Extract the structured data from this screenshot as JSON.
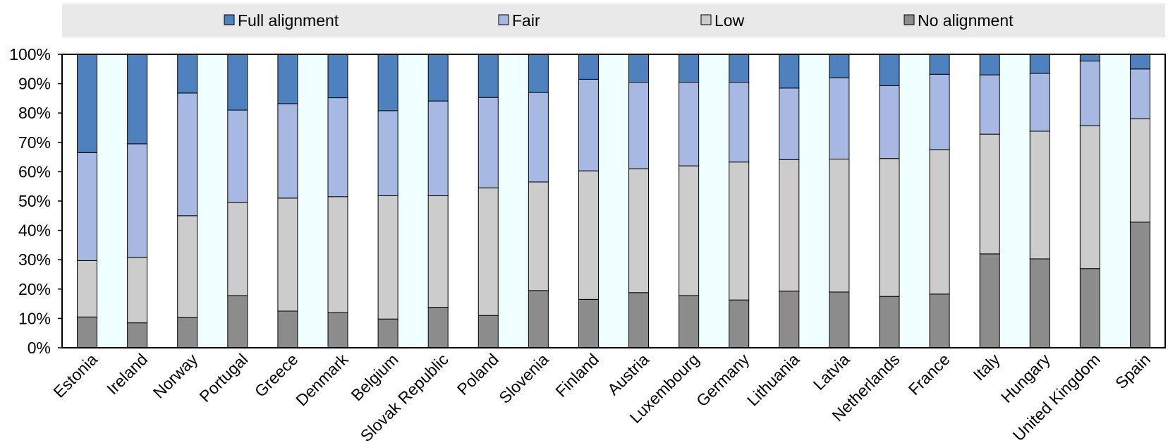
{
  "chart_data": {
    "type": "bar",
    "stacked": true,
    "orientation": "vertical",
    "percent": true,
    "categories": [
      "Estonia",
      "Ireland",
      "Norway",
      "Portugal",
      "Greece",
      "Denmark",
      "Belgium",
      "Slovak Republic",
      "Poland",
      "Slovenia",
      "Finland",
      "Austria",
      "Luxembourg",
      "Germany",
      "Lithuania",
      "Latvia",
      "Netherlands",
      "France",
      "Italy",
      "Hungary",
      "United Kingdom",
      "Spain"
    ],
    "series": [
      {
        "name": "No alignment",
        "color": "#8c8c8c",
        "values": [
          10.5,
          8.5,
          10.3,
          17.8,
          12.5,
          12.0,
          9.8,
          13.8,
          11.0,
          19.5,
          16.5,
          18.8,
          17.8,
          16.3,
          19.3,
          19.0,
          17.5,
          18.3,
          32.0,
          30.3,
          27.0,
          42.8
        ]
      },
      {
        "name": "Low",
        "color": "#cccccc",
        "values": [
          19.2,
          22.3,
          34.7,
          31.7,
          38.5,
          39.5,
          42.0,
          38.0,
          43.5,
          37.0,
          43.8,
          42.2,
          44.2,
          47.0,
          44.8,
          45.3,
          47.0,
          49.2,
          40.8,
          43.5,
          48.7,
          35.2
        ]
      },
      {
        "name": "Fair",
        "color": "#a7b9e3",
        "values": [
          36.8,
          38.7,
          41.8,
          31.5,
          32.2,
          33.7,
          29.0,
          32.3,
          30.8,
          30.5,
          31.2,
          29.5,
          28.5,
          27.2,
          24.4,
          27.7,
          24.8,
          25.7,
          20.2,
          19.7,
          22.0,
          17.0
        ]
      },
      {
        "name": "Full alignment",
        "color": "#4e81bd",
        "values": [
          33.5,
          30.5,
          13.2,
          19.0,
          16.8,
          14.8,
          19.2,
          15.9,
          14.7,
          13.0,
          8.5,
          9.5,
          9.5,
          9.5,
          11.5,
          8.0,
          10.7,
          6.8,
          7.0,
          6.5,
          2.3,
          5.0
        ]
      }
    ],
    "y_ticks": [
      "0%",
      "10%",
      "20%",
      "30%",
      "40%",
      "50%",
      "60%",
      "70%",
      "80%",
      "90%",
      "100%"
    ],
    "ylim": [
      0,
      100
    ],
    "legend": {
      "placement": "top",
      "items": [
        {
          "label": "Full alignment",
          "color": "#4e81bd"
        },
        {
          "label": "Fair",
          "color": "#a7b9e3"
        },
        {
          "label": "Low",
          "color": "#cccccc"
        },
        {
          "label": "No alignment",
          "color": "#8c8c8c"
        }
      ]
    },
    "colors": {
      "legend_background": "#e9e9e9",
      "alternate_column_band": "#f0ffff",
      "axis": "#000000"
    }
  }
}
